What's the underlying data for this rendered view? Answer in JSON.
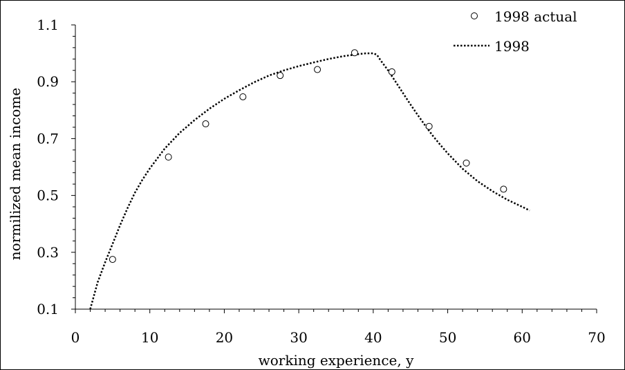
{
  "chart_data": {
    "type": "scatter",
    "title": "",
    "xlabel": "working experience, y",
    "ylabel": "normilized mean income",
    "xlim": [
      0,
      70
    ],
    "ylim": [
      0.1,
      1.1
    ],
    "x_ticks": [
      0,
      10,
      20,
      30,
      40,
      50,
      60,
      70
    ],
    "x_tick_labels": [
      "0",
      "10",
      "20",
      "30",
      "40",
      "50",
      "60",
      "70"
    ],
    "y_ticks": [
      0.1,
      0.3,
      0.5,
      0.7,
      0.9,
      1.1
    ],
    "y_tick_labels": [
      "0.1",
      "0.3",
      "0.5",
      "0.7",
      "0.9",
      "1.1"
    ],
    "grid": false,
    "legend_position": "top-right",
    "series": [
      {
        "name": "1998 actual",
        "style": "markers",
        "marker": "open-circle",
        "color": "#000000",
        "x": [
          5,
          12.5,
          17.5,
          22.5,
          27.5,
          32.5,
          37.5,
          42.5,
          47.5,
          52.5,
          57.5
        ],
        "y": [
          0.275,
          0.635,
          0.752,
          0.847,
          0.922,
          0.943,
          1.002,
          0.935,
          0.743,
          0.614,
          0.522
        ]
      },
      {
        "name": "1998",
        "style": "dotted-line",
        "color": "#000000",
        "x": [
          2,
          3,
          4,
          5,
          6,
          7,
          8,
          9,
          10,
          12,
          14,
          16,
          18,
          20,
          22,
          24,
          26,
          28,
          30,
          32,
          34,
          36,
          38,
          39,
          40,
          40.5,
          41,
          42,
          43,
          44,
          45,
          46,
          47,
          48,
          49,
          50,
          52,
          54,
          56,
          58,
          60,
          61
        ],
        "y": [
          0.1,
          0.195,
          0.265,
          0.33,
          0.395,
          0.455,
          0.51,
          0.555,
          0.595,
          0.665,
          0.72,
          0.765,
          0.805,
          0.84,
          0.87,
          0.898,
          0.922,
          0.94,
          0.955,
          0.968,
          0.98,
          0.99,
          0.997,
          1.0,
          1.0,
          0.995,
          0.975,
          0.94,
          0.9,
          0.86,
          0.82,
          0.782,
          0.745,
          0.71,
          0.678,
          0.648,
          0.594,
          0.55,
          0.515,
          0.485,
          0.46,
          0.447
        ]
      }
    ]
  }
}
